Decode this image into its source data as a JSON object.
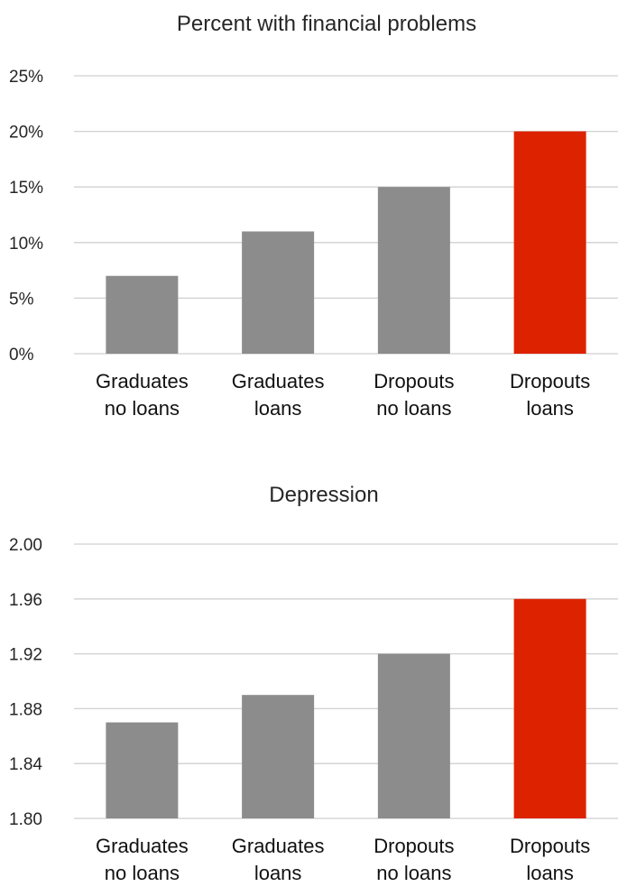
{
  "colors": {
    "bar": "#8c8c8c",
    "highlight": "#dd2200",
    "grid": "#d0d0d0"
  },
  "chart_data": [
    {
      "type": "bar",
      "title": "Percent with financial problems",
      "categories": [
        [
          "Graduates",
          "no loans"
        ],
        [
          "Graduates",
          "loans"
        ],
        [
          "Dropouts",
          "no loans"
        ],
        [
          "Dropouts",
          "loans"
        ]
      ],
      "values": [
        7,
        11,
        15,
        20
      ],
      "highlight_index": 3,
      "ylim": [
        0,
        25
      ],
      "yticks": [
        0,
        5,
        10,
        15,
        20,
        25
      ],
      "ytick_labels": [
        "0%",
        "5%",
        "10%",
        "15%",
        "20%",
        "25%"
      ],
      "grid": true,
      "legend": "none"
    },
    {
      "type": "bar",
      "title": "Depression",
      "categories": [
        [
          "Graduates",
          "no loans"
        ],
        [
          "Graduates",
          "loans"
        ],
        [
          "Dropouts",
          "no loans"
        ],
        [
          "Dropouts",
          "loans"
        ]
      ],
      "values": [
        1.87,
        1.89,
        1.92,
        1.96
      ],
      "highlight_index": 3,
      "ylim": [
        1.8,
        2.0
      ],
      "yticks": [
        1.8,
        1.84,
        1.88,
        1.92,
        1.96,
        2.0
      ],
      "ytick_labels": [
        "1.80",
        "1.84",
        "1.88",
        "1.92",
        "1.96",
        "2.00"
      ],
      "grid": true,
      "legend": "none"
    }
  ]
}
